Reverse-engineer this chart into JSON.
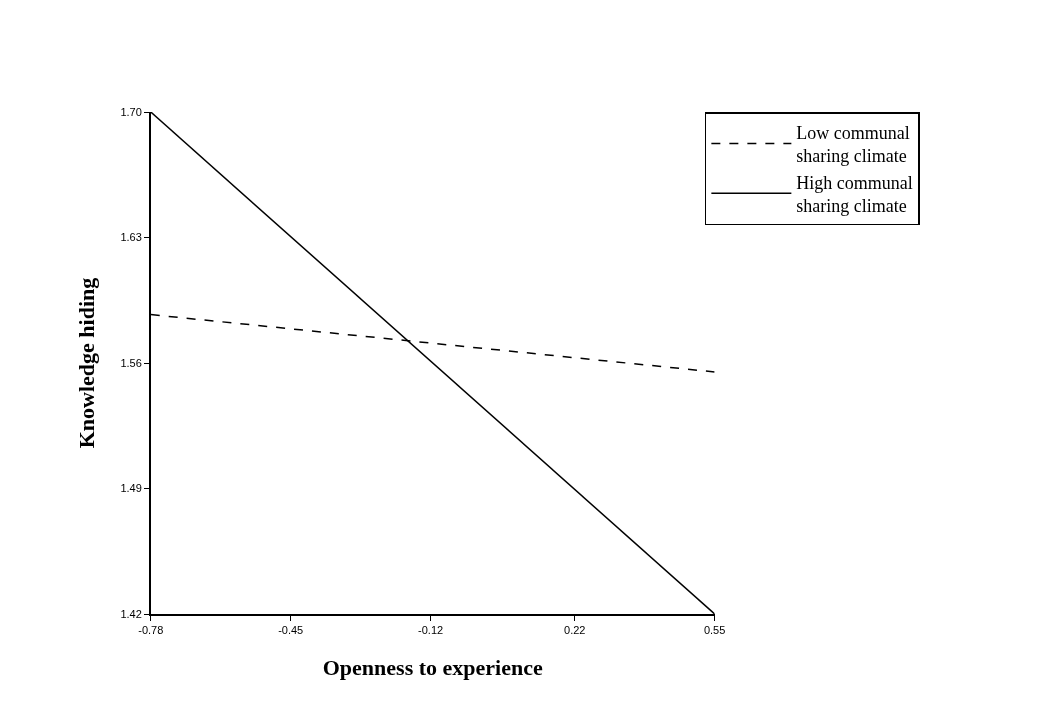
{
  "chart_data": {
    "type": "line",
    "xlabel": "Openness to experience",
    "ylabel": "Knowledge hiding",
    "x": [
      -0.78,
      0.55
    ],
    "series": [
      {
        "name": "Low communal\nsharing climate",
        "color": "#000000",
        "values": [
          1.587,
          1.555
        ],
        "line_style": "dashed"
      },
      {
        "name": "High communal\nsharing climate",
        "color": "#000000",
        "values": [
          1.7,
          1.42
        ],
        "line_style": "solid"
      }
    ],
    "xlim": [
      -0.78,
      0.55
    ],
    "xticks": [
      -0.78,
      -0.45,
      -0.12,
      0.22,
      0.55
    ],
    "ylim": [
      1.42,
      1.7
    ],
    "yticks": [
      1.42,
      1.49,
      1.56,
      1.63,
      {
        "value": 1.7,
        "label": "1.70"
      }
    ],
    "legend": "top right",
    "marker": "none"
  }
}
